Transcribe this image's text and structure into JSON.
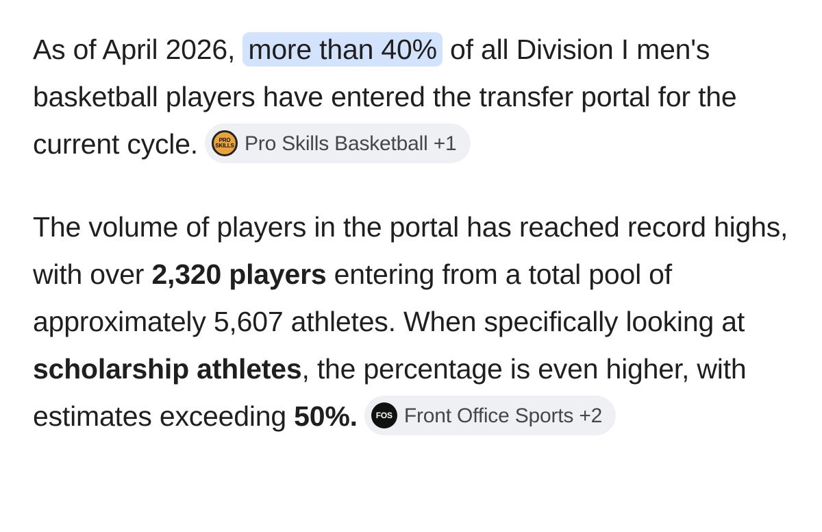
{
  "paragraphs": [
    {
      "runs": [
        {
          "text": "As of April 2026, ",
          "style": "plain"
        },
        {
          "text": "more than 40%",
          "style": "highlight"
        },
        {
          "text": " of all Division I men's basketball players have entered the transfer portal for the current cycle.",
          "style": "plain"
        }
      ],
      "chip": {
        "icon": "PRO SKILLS",
        "label": "Pro Skills Basketball +1"
      }
    },
    {
      "runs": [
        {
          "text": "The volume of players in the portal has reached record highs, with over ",
          "style": "plain"
        },
        {
          "text": "2,320 players",
          "style": "bold"
        },
        {
          "text": " entering from a total pool of approximately 5,607 athletes. When specifically looking at ",
          "style": "plain"
        },
        {
          "text": "scholarship athletes",
          "style": "bold"
        },
        {
          "text": ", the percentage is even higher, with estimates exceeding ",
          "style": "plain"
        },
        {
          "text": "50%.",
          "style": "bold"
        }
      ],
      "chip": {
        "icon": "FOS",
        "label": "Front Office Sports +2"
      }
    }
  ]
}
